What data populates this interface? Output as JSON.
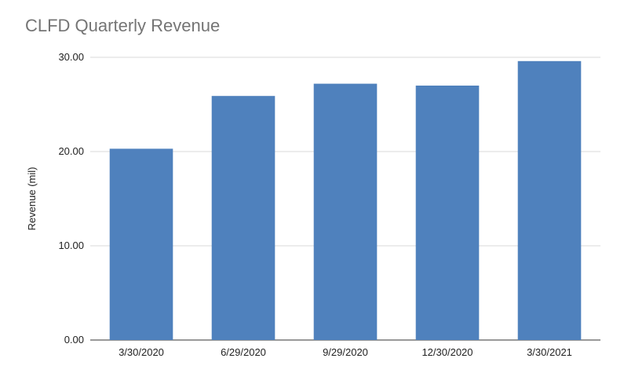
{
  "chart_data": {
    "type": "bar",
    "title": "CLFD Quarterly Revenue",
    "xlabel": "",
    "ylabel": "Revenue (mil)",
    "categories": [
      "3/30/2020",
      "6/29/2020",
      "9/29/2020",
      "12/30/2020",
      "3/30/2021"
    ],
    "values": [
      20.3,
      25.9,
      27.2,
      27.0,
      29.6
    ],
    "ylim": [
      0,
      30
    ],
    "yticks": [
      "0.00",
      "10.00",
      "20.00",
      "30.00"
    ],
    "grid": true,
    "legend": "none",
    "colors": {
      "bar": "#4f81bd",
      "grid": "#d9d9d9",
      "axis": "#333333"
    }
  }
}
